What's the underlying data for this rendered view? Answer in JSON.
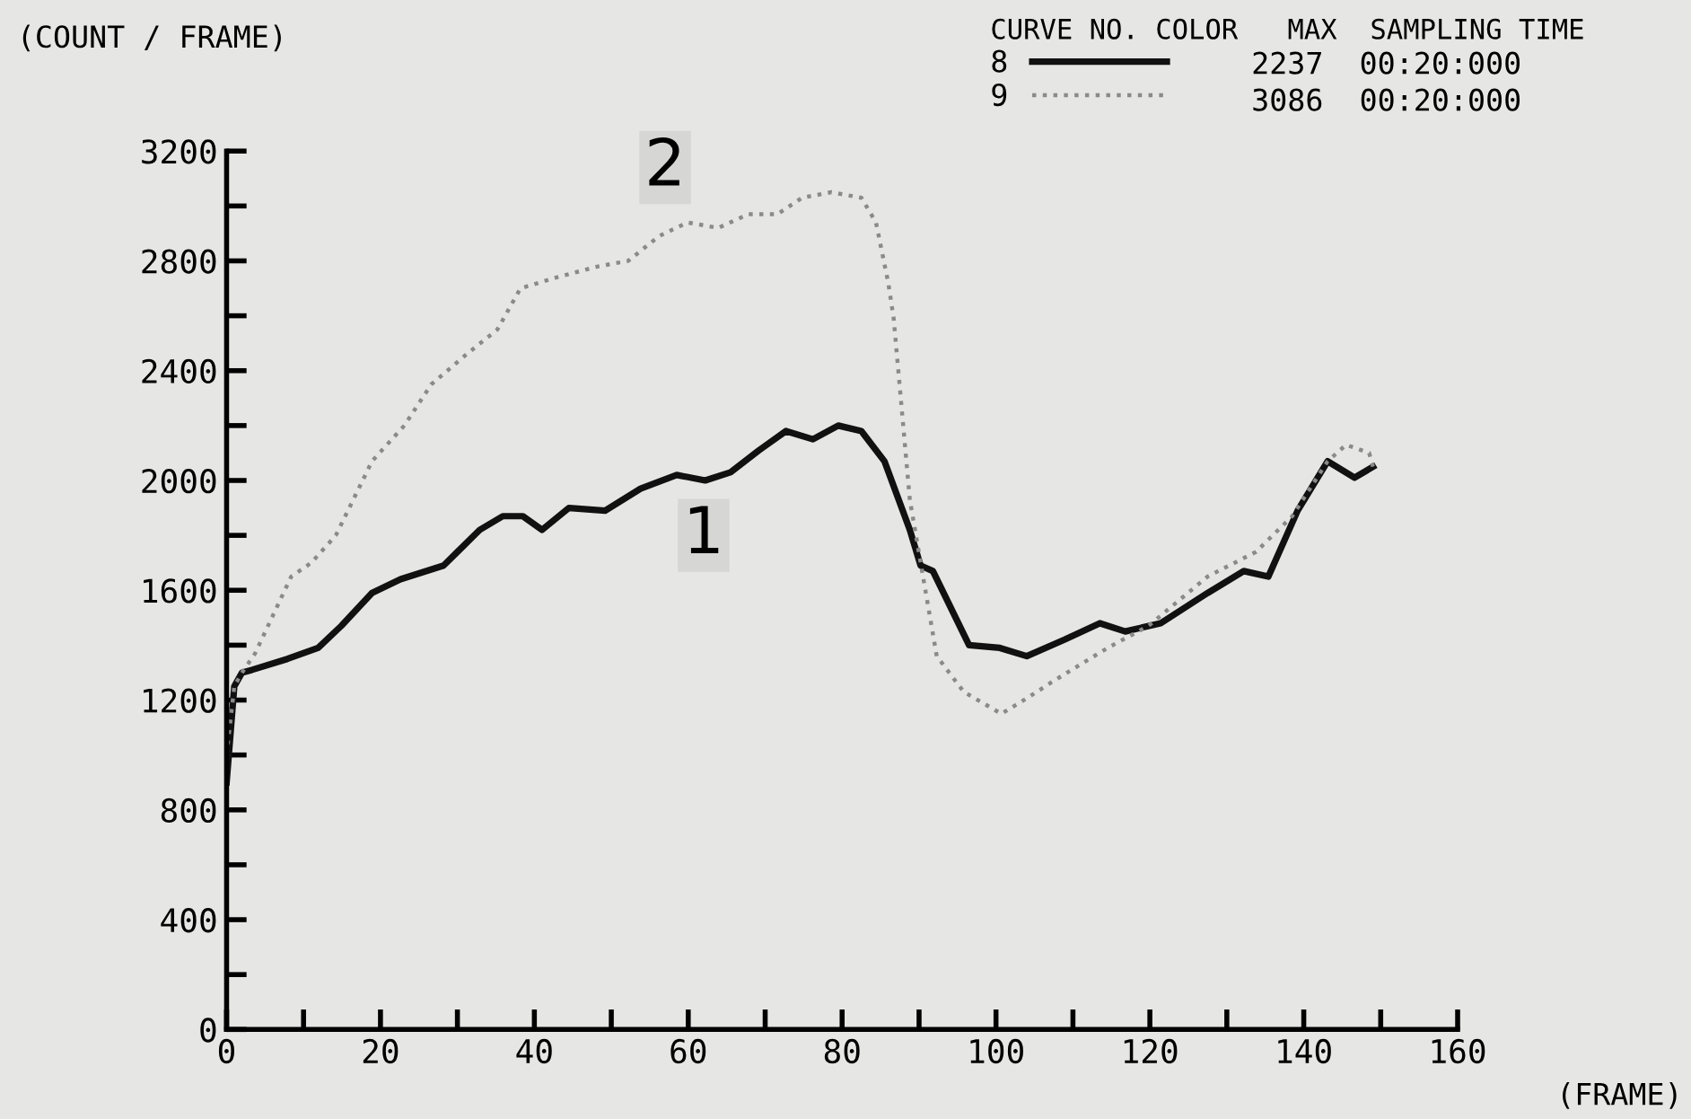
{
  "chart_data": {
    "type": "line",
    "ylabel": "(COUNT / FRAME)",
    "xlabel": "(FRAME)",
    "legend_title": "CURVE NO. COLOR   MAX  SAMPLING TIME",
    "legend": "top right",
    "grid": false,
    "marker": "none",
    "xlim": [
      0,
      160
    ],
    "ylim": [
      0,
      3200
    ],
    "xticks": [
      0,
      {
        "value": 10,
        "label": null
      },
      20,
      {
        "value": 30,
        "label": null
      },
      40,
      {
        "value": 50,
        "label": null
      },
      60,
      {
        "value": 70,
        "label": null
      },
      80,
      {
        "value": 90,
        "label": null
      },
      100,
      {
        "value": 110,
        "label": null
      },
      120,
      {
        "value": 130,
        "label": null
      },
      140,
      {
        "value": 150,
        "label": null
      },
      160
    ],
    "yticks": [
      0,
      {
        "value": 200,
        "label": null
      },
      400,
      {
        "value": 600,
        "label": null
      },
      800,
      {
        "value": 1000,
        "label": null
      },
      1200,
      {
        "value": 1400,
        "label": null
      },
      1600,
      {
        "value": 1800,
        "label": null
      },
      2000,
      {
        "value": 2200,
        "label": null
      },
      2400,
      {
        "value": 2600,
        "label": null
      },
      2800,
      {
        "value": 3000,
        "label": null
      },
      3200
    ],
    "series": [
      {
        "name": "8",
        "color": "#111111",
        "line_style": "solid",
        "x": [
          0,
          1,
          2,
          3.3,
          7.9,
          11.9,
          14.9,
          18.9,
          22.6,
          28.2,
          32.9,
          35.9,
          38.5,
          41,
          44.5,
          49.2,
          53.8,
          58.5,
          62.2,
          65.5,
          69.2,
          72.7,
          76.2,
          79.5,
          82.5,
          85.5,
          88.8,
          90.2,
          91.8,
          96.5,
          100.5,
          104,
          108.9,
          113.5,
          116.8,
          121.4,
          127.5,
          132.2,
          135.4,
          139.2,
          143.1,
          146.6,
          149
        ],
        "values": [
          900,
          1250,
          1300,
          1310,
          1350,
          1390,
          1470,
          1590,
          1640,
          1690,
          1820,
          1870,
          1870,
          1820,
          1900,
          1890,
          1970,
          2020,
          2000,
          2030,
          2110,
          2180,
          2150,
          2200,
          2180,
          2070,
          1820,
          1690,
          1670,
          1400,
          1390,
          1360,
          1420,
          1480,
          1450,
          1480,
          1590,
          1670,
          1650,
          1890,
          2070,
          2010,
          2050
        ]
      },
      {
        "name": "9",
        "color": "#8a8a8a",
        "line_style": "dotted",
        "x": [
          0,
          1,
          2,
          3.7,
          8.4,
          11,
          14.2,
          18.9,
          23.1,
          26.6,
          31.2,
          35.2,
          38.2,
          42.9,
          48.3,
          52.2,
          56.2,
          59.9,
          63.9,
          67.8,
          71.6,
          74.8,
          78.6,
          82.5,
          84.4,
          86,
          86.7,
          88.8,
          90.7,
          92.3,
          95.8,
          100.7,
          104.2,
          107.5,
          114.5,
          119.8,
          127.5,
          133.8,
          138.5,
          143.1,
          145.5,
          148.5,
          149
        ],
        "values": [
          1000,
          1250,
          1300,
          1370,
          1650,
          1700,
          1800,
          2070,
          2200,
          2350,
          2460,
          2550,
          2700,
          2740,
          2780,
          2800,
          2890,
          2940,
          2920,
          2970,
          2970,
          3030,
          3050,
          3030,
          2940,
          2720,
          2590,
          1930,
          1620,
          1360,
          1230,
          1150,
          1210,
          1270,
          1390,
          1470,
          1650,
          1740,
          1870,
          2070,
          2130,
          2100,
          2050
        ]
      }
    ],
    "annotations": [
      {
        "text": "1",
        "x": 62,
        "y": 1800
      },
      {
        "text": "2",
        "x": 57,
        "y": 3140
      },
      "2237  00:20:000",
      "3086  00:20:000"
    ]
  }
}
